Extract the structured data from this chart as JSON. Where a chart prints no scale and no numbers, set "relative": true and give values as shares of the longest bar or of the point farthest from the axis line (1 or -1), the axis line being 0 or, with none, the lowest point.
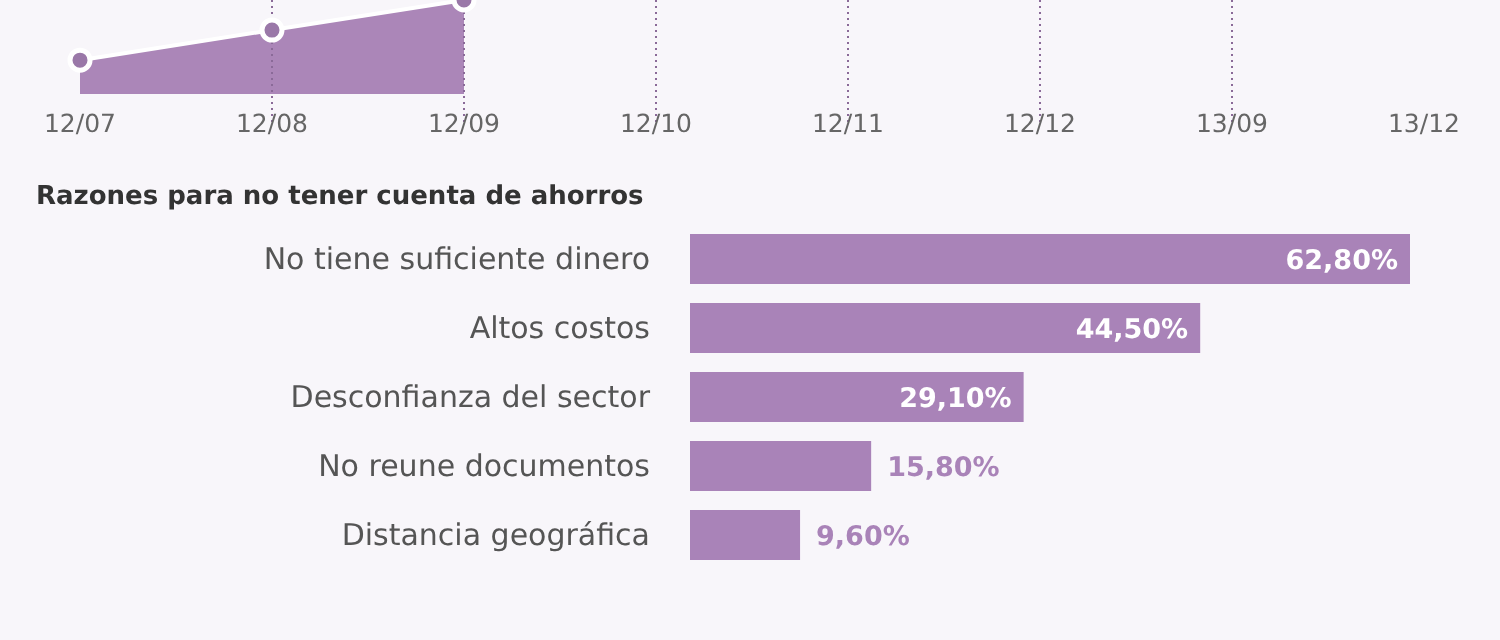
{
  "chart_data": [
    {
      "type": "area",
      "relative": true,
      "categories": [
        "12/07",
        "12/08",
        "12/09",
        "12/10",
        "12/11",
        "12/12",
        "13/09",
        "13/12"
      ],
      "values": [
        0.36,
        0.68,
        1,
        null,
        null,
        null,
        null,
        null
      ],
      "color": "#ab86b8",
      "grid": "x",
      "marker": "circle"
    },
    {
      "type": "bar",
      "orientation": "horizontal",
      "title": "Razones para no tener cuenta de ahorros",
      "categories": [
        "No tiene suficiente dinero",
        "Altos costos",
        "Desconfianza del sector",
        "No reune documentos",
        "Distancia geográfica"
      ],
      "values": [
        62.8,
        44.5,
        29.1,
        15.8,
        9.6
      ],
      "value_labels": [
        "62,80%",
        "44,50%",
        "29,10%",
        "15,80%",
        "9,60%"
      ],
      "color": "#a983b8"
    }
  ]
}
